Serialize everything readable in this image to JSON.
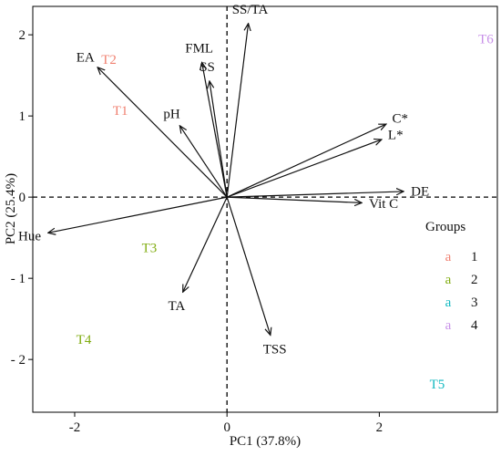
{
  "chart_data": {
    "type": "scatter",
    "title": "",
    "xlabel": "PC1 (37.8%)",
    "ylabel": "PC2 (25.4%)",
    "xlim": [
      -2.55,
      3.55
    ],
    "ylim": [
      -2.65,
      2.35
    ],
    "grid": false,
    "x_ticks": [
      {
        "value": -2,
        "label": "-2"
      },
      {
        "value": 0,
        "label": "0"
      },
      {
        "value": 2,
        "label": "2"
      }
    ],
    "y_ticks": [
      {
        "value": 2,
        "label": "2"
      },
      {
        "value": 1,
        "label": "1"
      },
      {
        "value": 0,
        "label": "0"
      },
      {
        "value": -1,
        "label": "- 1"
      },
      {
        "value": -2,
        "label": "- 2"
      }
    ],
    "reference_lines": {
      "x": 0,
      "y": 0,
      "style": "dashed"
    },
    "loadings": [
      {
        "name": "SS/TA",
        "x": 0.28,
        "y": 2.14
      },
      {
        "name": "FML",
        "x": -0.33,
        "y": 1.66
      },
      {
        "name": "SS",
        "x": -0.23,
        "y": 1.43
      },
      {
        "name": "EA",
        "x": -1.7,
        "y": 1.6
      },
      {
        "name": "pH",
        "x": -0.62,
        "y": 0.88
      },
      {
        "name": "C*",
        "x": 2.09,
        "y": 0.9
      },
      {
        "name": "L*",
        "x": 2.03,
        "y": 0.71
      },
      {
        "name": "DE",
        "x": 2.32,
        "y": 0.07
      },
      {
        "name": "Vit C",
        "x": 1.77,
        "y": -0.07
      },
      {
        "name": "Hue",
        "x": -2.35,
        "y": -0.44
      },
      {
        "name": "TA",
        "x": -0.58,
        "y": -1.17
      },
      {
        "name": "TSS",
        "x": 0.57,
        "y": -1.7
      }
    ],
    "samples": [
      {
        "name": "T1",
        "x": -1.4,
        "y": 1.07,
        "group": "1"
      },
      {
        "name": "T2",
        "x": -1.55,
        "y": 1.7,
        "group": "1"
      },
      {
        "name": "T3",
        "x": -1.02,
        "y": -0.62,
        "group": "2"
      },
      {
        "name": "T4",
        "x": -1.88,
        "y": -1.75,
        "group": "2"
      },
      {
        "name": "T5",
        "x": 2.76,
        "y": -2.3,
        "group": "3"
      },
      {
        "name": "T6",
        "x": 3.4,
        "y": 1.95,
        "group": "4"
      }
    ],
    "legend": {
      "title": "Groups",
      "placement": "right",
      "swatch_glyph": "a",
      "entries": [
        {
          "label": "1",
          "color": "#f08070"
        },
        {
          "label": "2",
          "color": "#80ac10"
        },
        {
          "label": "3",
          "color": "#10b8c0"
        },
        {
          "label": "4",
          "color": "#c890e8"
        }
      ]
    }
  }
}
